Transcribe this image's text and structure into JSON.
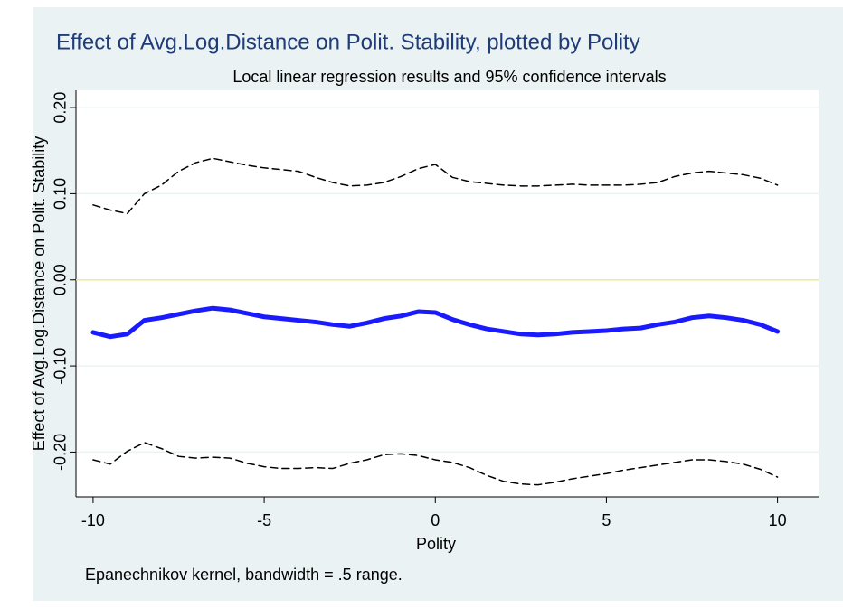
{
  "chart_data": {
    "type": "line",
    "title": "Effect of Avg.Log.Distance on Polit. Stability, plotted by Polity",
    "subtitle": "Local linear regression results and 95% confidence intervals",
    "x_label": "Polity",
    "y_label": "Effect of Avg.Log.Distance on Polit. Stability",
    "note": "Epanechnikov kernel, bandwidth = .5 range.",
    "x": [
      -10,
      -9.5,
      -9,
      -8.5,
      -8,
      -7.5,
      -7,
      -6.5,
      -6,
      -5.5,
      -5,
      -4.5,
      -4,
      -3.5,
      -3,
      -2.5,
      -2,
      -1.5,
      -1,
      -0.5,
      0,
      0.5,
      1,
      1.5,
      2,
      2.5,
      3,
      3.5,
      4,
      4.5,
      5,
      5.5,
      6,
      6.5,
      7,
      7.5,
      8,
      8.5,
      9,
      9.5,
      10
    ],
    "series": [
      {
        "color": "#000000",
        "dash": true,
        "width": 1.5,
        "values": [
          0.087,
          0.081,
          0.077,
          0.1,
          0.11,
          0.126,
          0.136,
          0.141,
          0.137,
          0.133,
          0.13,
          0.128,
          0.126,
          0.119,
          0.113,
          0.109,
          0.11,
          0.113,
          0.12,
          0.129,
          0.134,
          0.119,
          0.114,
          0.112,
          0.11,
          0.109,
          0.109,
          0.11,
          0.111,
          0.11,
          0.11,
          0.11,
          0.111,
          0.113,
          0.12,
          0.124,
          0.126,
          0.124,
          0.122,
          0.118,
          0.11
        ]
      },
      {
        "color": "#1a1aff",
        "dash": false,
        "width": 5,
        "values": [
          -0.061,
          -0.066,
          -0.063,
          -0.047,
          -0.044,
          -0.04,
          -0.036,
          -0.033,
          -0.035,
          -0.039,
          -0.043,
          -0.045,
          -0.047,
          -0.049,
          -0.052,
          -0.054,
          -0.05,
          -0.045,
          -0.042,
          -0.037,
          -0.038,
          -0.046,
          -0.052,
          -0.057,
          -0.06,
          -0.063,
          -0.064,
          -0.063,
          -0.061,
          -0.06,
          -0.059,
          -0.057,
          -0.056,
          -0.052,
          -0.049,
          -0.044,
          -0.042,
          -0.044,
          -0.047,
          -0.052,
          -0.06
        ]
      },
      {
        "color": "#000000",
        "dash": true,
        "width": 1.5,
        "values": [
          -0.209,
          -0.214,
          -0.199,
          -0.189,
          -0.196,
          -0.205,
          -0.207,
          -0.206,
          -0.207,
          -0.213,
          -0.217,
          -0.219,
          -0.219,
          -0.218,
          -0.219,
          -0.213,
          -0.209,
          -0.203,
          -0.202,
          -0.204,
          -0.209,
          -0.212,
          -0.218,
          -0.227,
          -0.234,
          -0.237,
          -0.238,
          -0.235,
          -0.231,
          -0.228,
          -0.225,
          -0.221,
          -0.218,
          -0.215,
          -0.212,
          -0.209,
          -0.209,
          -0.211,
          -0.214,
          -0.22,
          -0.229
        ]
      }
    ],
    "reference_line": {
      "value": 0,
      "color": "#eeee88"
    },
    "xlim": [
      -10.5,
      11.2
    ],
    "xticks": [
      -10,
      -5,
      0,
      5,
      10
    ],
    "ylim": [
      -0.252,
      0.22
    ],
    "yticks": [
      {
        "value": -0.2,
        "label": "-0.20"
      },
      {
        "value": -0.1,
        "label": "-0.10"
      },
      {
        "value": 0,
        "label": "0.00"
      },
      {
        "value": 0.1,
        "label": "0.10"
      },
      {
        "value": 0.2,
        "label": "0.20"
      }
    ],
    "grid": true
  }
}
